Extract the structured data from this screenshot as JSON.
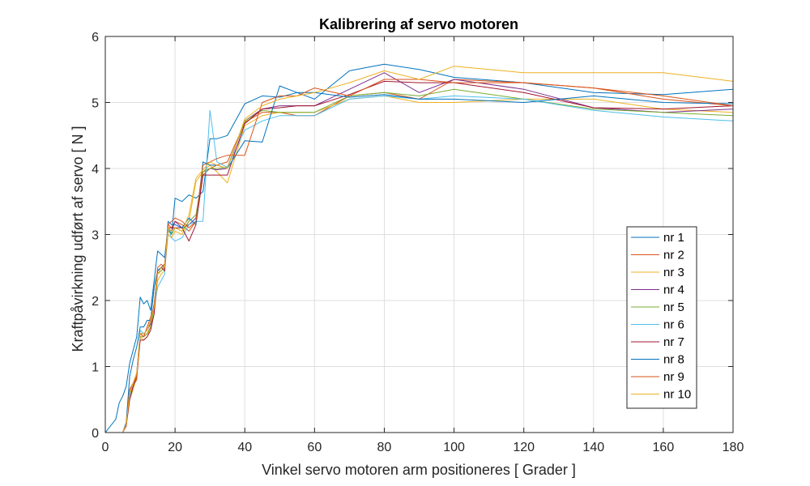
{
  "chart_data": {
    "type": "line",
    "title": "Kalibrering af servo motoren",
    "xlabel": "Vinkel servo motoren arm positioneres [ Grader ]",
    "ylabel": "Kraftpåvirkning udført af servo [ N ]",
    "xlim": [
      0,
      180
    ],
    "ylim": [
      0,
      6
    ],
    "xticks": [
      0,
      20,
      40,
      60,
      80,
      100,
      120,
      140,
      160,
      180
    ],
    "yticks": [
      0,
      1,
      2,
      3,
      4,
      5,
      6
    ],
    "grid": true,
    "legend_position": "right",
    "x": [
      0,
      3,
      4,
      5,
      6,
      7,
      8,
      9,
      10,
      11,
      12,
      13,
      14,
      15,
      16,
      17,
      18,
      19,
      20,
      22,
      24,
      26,
      28,
      30,
      32,
      35,
      40,
      45,
      50,
      55,
      60,
      70,
      80,
      90,
      100,
      120,
      140,
      160,
      180
    ],
    "series": [
      {
        "name": "nr 1",
        "color": "#0072BD",
        "values": [
          0,
          0.2,
          0.45,
          0.55,
          0.7,
          1.05,
          1.25,
          1.45,
          2.05,
          1.95,
          2.0,
          1.85,
          2.3,
          2.75,
          2.7,
          2.65,
          3.1,
          3.0,
          3.55,
          3.5,
          3.6,
          3.55,
          3.65,
          4.45,
          4.45,
          4.5,
          4.98,
          5.1,
          5.08,
          5.15,
          5.05,
          5.48,
          5.58,
          5.5,
          5.38,
          5.3,
          5.15,
          5.12,
          5.2
        ]
      },
      {
        "name": "nr 2",
        "color": "#D95319",
        "values": [
          0,
          0,
          0,
          0,
          0.15,
          0.6,
          0.7,
          0.8,
          1.5,
          1.45,
          1.5,
          1.6,
          1.9,
          2.4,
          2.45,
          2.5,
          3.15,
          3.1,
          3.2,
          3.15,
          3.05,
          3.2,
          3.9,
          4.0,
          4.05,
          4.1,
          4.7,
          4.85,
          4.85,
          4.8,
          4.8,
          5.1,
          5.15,
          5.05,
          5.35,
          5.3,
          5.22,
          5.05,
          4.95
        ]
      },
      {
        "name": "nr 3",
        "color": "#EDB120",
        "values": [
          0,
          0,
          0,
          0,
          0.1,
          0.5,
          0.65,
          0.85,
          1.45,
          1.4,
          1.45,
          1.6,
          1.8,
          2.3,
          2.4,
          2.45,
          3.0,
          2.95,
          3.05,
          3.0,
          3.2,
          3.8,
          3.95,
          4.05,
          3.95,
          3.78,
          4.65,
          4.8,
          4.85,
          4.85,
          4.85,
          5.05,
          5.1,
          5.0,
          5.0,
          5.05,
          5.05,
          4.9,
          4.85
        ]
      },
      {
        "name": "nr 4",
        "color": "#7E2F8E",
        "values": [
          0,
          0,
          0,
          0,
          0.12,
          0.65,
          0.75,
          0.9,
          1.5,
          1.5,
          1.55,
          1.65,
          1.95,
          2.45,
          2.5,
          2.55,
          3.1,
          3.05,
          3.2,
          3.1,
          3.15,
          3.25,
          3.95,
          4.0,
          3.98,
          4.0,
          4.72,
          4.9,
          4.95,
          4.95,
          4.95,
          5.2,
          5.45,
          5.15,
          5.35,
          5.2,
          4.92,
          4.85,
          4.9
        ]
      },
      {
        "name": "nr 5",
        "color": "#77AC30",
        "values": [
          0,
          0,
          0,
          0,
          0.1,
          0.6,
          0.7,
          0.85,
          1.45,
          1.45,
          1.5,
          1.6,
          1.9,
          2.4,
          2.45,
          2.5,
          3.05,
          3.0,
          3.1,
          3.05,
          3.2,
          3.3,
          3.95,
          4.0,
          4.0,
          4.02,
          4.72,
          4.88,
          4.85,
          4.85,
          4.85,
          5.1,
          5.15,
          5.1,
          5.2,
          5.05,
          4.9,
          4.85,
          4.8
        ]
      },
      {
        "name": "nr 6",
        "color": "#4DBEEE",
        "values": [
          0,
          0,
          0,
          0,
          0.1,
          0.55,
          0.7,
          0.9,
          1.55,
          1.5,
          1.55,
          1.7,
          1.9,
          2.2,
          2.3,
          2.4,
          3.1,
          2.95,
          2.9,
          2.95,
          3.15,
          3.2,
          3.2,
          4.88,
          4.1,
          4.02,
          4.58,
          4.72,
          4.8,
          4.8,
          4.8,
          5.05,
          5.1,
          5.05,
          5.1,
          5.05,
          4.88,
          4.78,
          4.72
        ]
      },
      {
        "name": "nr 7",
        "color": "#A2142F",
        "values": [
          0,
          0,
          0,
          0,
          0.1,
          0.5,
          0.7,
          0.85,
          1.4,
          1.4,
          1.45,
          1.55,
          1.8,
          2.45,
          2.5,
          2.45,
          3.1,
          3.1,
          3.1,
          3.1,
          2.9,
          3.15,
          3.9,
          3.9,
          3.9,
          3.9,
          4.68,
          4.9,
          4.92,
          4.95,
          4.95,
          5.12,
          5.32,
          5.3,
          5.3,
          5.15,
          4.92,
          4.9,
          4.95
        ]
      },
      {
        "name": "nr 8",
        "color": "#0072BD",
        "values": [
          0,
          0,
          0,
          0,
          0.15,
          0.85,
          1.1,
          1.3,
          1.6,
          1.6,
          1.7,
          1.7,
          2.2,
          2.45,
          2.5,
          2.5,
          3.2,
          3.15,
          3.15,
          3.1,
          3.25,
          3.15,
          4.1,
          4.05,
          4.05,
          4.0,
          4.42,
          4.4,
          5.25,
          5.15,
          5.15,
          5.08,
          5.12,
          5.05,
          5.05,
          5.0,
          5.1,
          5.0,
          4.98
        ]
      },
      {
        "name": "nr 9",
        "color": "#D95319",
        "values": [
          0,
          0,
          0,
          0,
          0.12,
          0.65,
          0.75,
          0.85,
          1.5,
          1.45,
          1.6,
          1.75,
          1.9,
          2.5,
          2.55,
          2.5,
          3.15,
          3.2,
          3.25,
          3.2,
          3.1,
          3.2,
          4.05,
          4.1,
          4.15,
          4.2,
          4.2,
          5.0,
          5.1,
          5.1,
          5.22,
          5.1,
          5.35,
          5.35,
          5.3,
          5.3,
          5.22,
          5.1,
          4.95
        ]
      },
      {
        "name": "nr 10",
        "color": "#EDB120",
        "values": [
          0,
          0,
          0,
          0,
          0.12,
          0.6,
          0.75,
          0.9,
          1.5,
          1.5,
          1.55,
          1.7,
          1.9,
          2.4,
          2.5,
          2.5,
          3.1,
          3.05,
          3.1,
          3.05,
          3.3,
          3.85,
          3.98,
          4.1,
          4.05,
          4.0,
          4.75,
          4.95,
          5.05,
          5.1,
          5.15,
          5.3,
          5.48,
          5.35,
          5.55,
          5.45,
          5.45,
          5.45,
          5.32
        ]
      }
    ]
  }
}
